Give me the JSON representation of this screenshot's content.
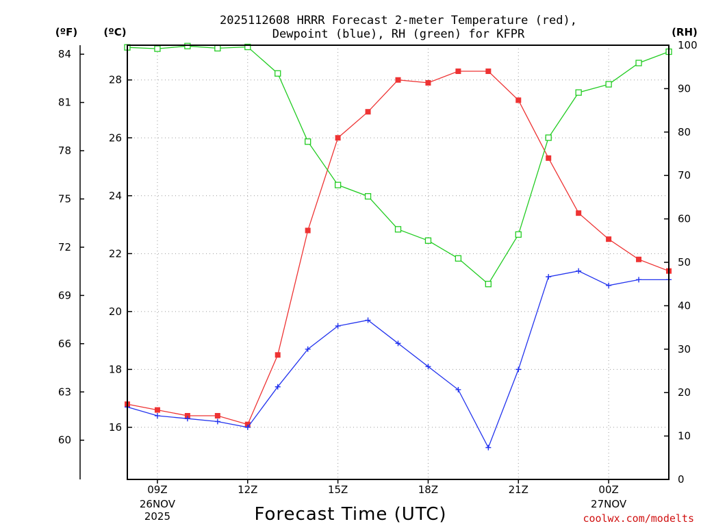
{
  "chart_data": {
    "type": "line",
    "title_lines": [
      "2025112608 HRRR Forecast 2-meter Temperature (red),",
      "Dewpoint (blue), RH (green) for KFPR"
    ],
    "xlabel": "Forecast Time (UTC)",
    "credit": "coolwx.com/modelts",
    "units": {
      "fahrenheit": "(ºF)",
      "celsius": "(ºC)",
      "rh": "(RH)"
    },
    "x_range_hours": [
      8,
      26
    ],
    "x_ticks": [
      {
        "hour": 9,
        "label": "09Z",
        "sub": [
          "26NOV",
          "2025"
        ]
      },
      {
        "hour": 12,
        "label": "12Z",
        "sub": []
      },
      {
        "hour": 15,
        "label": "15Z",
        "sub": []
      },
      {
        "hour": 18,
        "label": "18Z",
        "sub": []
      },
      {
        "hour": 21,
        "label": "21Z",
        "sub": []
      },
      {
        "hour": 24,
        "label": "00Z",
        "sub": [
          "27NOV"
        ]
      }
    ],
    "celsius_axis": {
      "range": [
        14.2,
        29.2
      ],
      "ticks": [
        "16",
        "18",
        "20",
        "22",
        "24",
        "26",
        "28"
      ]
    },
    "fahrenheit_ticks": [
      "60",
      "63",
      "66",
      "69",
      "72",
      "75",
      "78",
      "81",
      "84"
    ],
    "rh_axis": {
      "range": [
        0,
        100
      ],
      "ticks": [
        "0",
        "10",
        "20",
        "30",
        "40",
        "50",
        "60",
        "70",
        "80",
        "90",
        "100"
      ]
    },
    "hours": [
      8,
      9,
      10,
      11,
      12,
      13,
      14,
      15,
      16,
      17,
      18,
      19,
      20,
      21,
      22,
      23,
      24,
      25,
      26
    ],
    "series": [
      {
        "name": "Temperature",
        "color": "#ee3333",
        "axis": "celsius",
        "marker": "filled-square",
        "values": [
          16.8,
          16.6,
          16.4,
          16.4,
          16.1,
          18.5,
          22.8,
          26.0,
          26.9,
          28.0,
          27.9,
          28.3,
          28.3,
          27.3,
          25.3,
          23.4,
          22.5,
          21.8,
          21.4
        ]
      },
      {
        "name": "Dewpoint",
        "color": "#2233ee",
        "axis": "celsius",
        "marker": "plus",
        "values": [
          16.7,
          16.4,
          16.3,
          16.2,
          16.0,
          17.4,
          18.7,
          19.5,
          19.7,
          18.9,
          18.1,
          17.3,
          15.3,
          18.0,
          21.2,
          21.4,
          20.9,
          21.1,
          21.1
        ]
      },
      {
        "name": "RH",
        "color": "#22cc22",
        "axis": "rh",
        "marker": "open-square",
        "values": [
          99.5,
          99.2,
          99.8,
          99.3,
          99.6,
          93.5,
          77.8,
          67.8,
          65.2,
          57.6,
          55.0,
          50.9,
          45.0,
          56.4,
          78.7,
          89.1,
          91.0,
          95.9,
          98.5
        ]
      }
    ]
  }
}
